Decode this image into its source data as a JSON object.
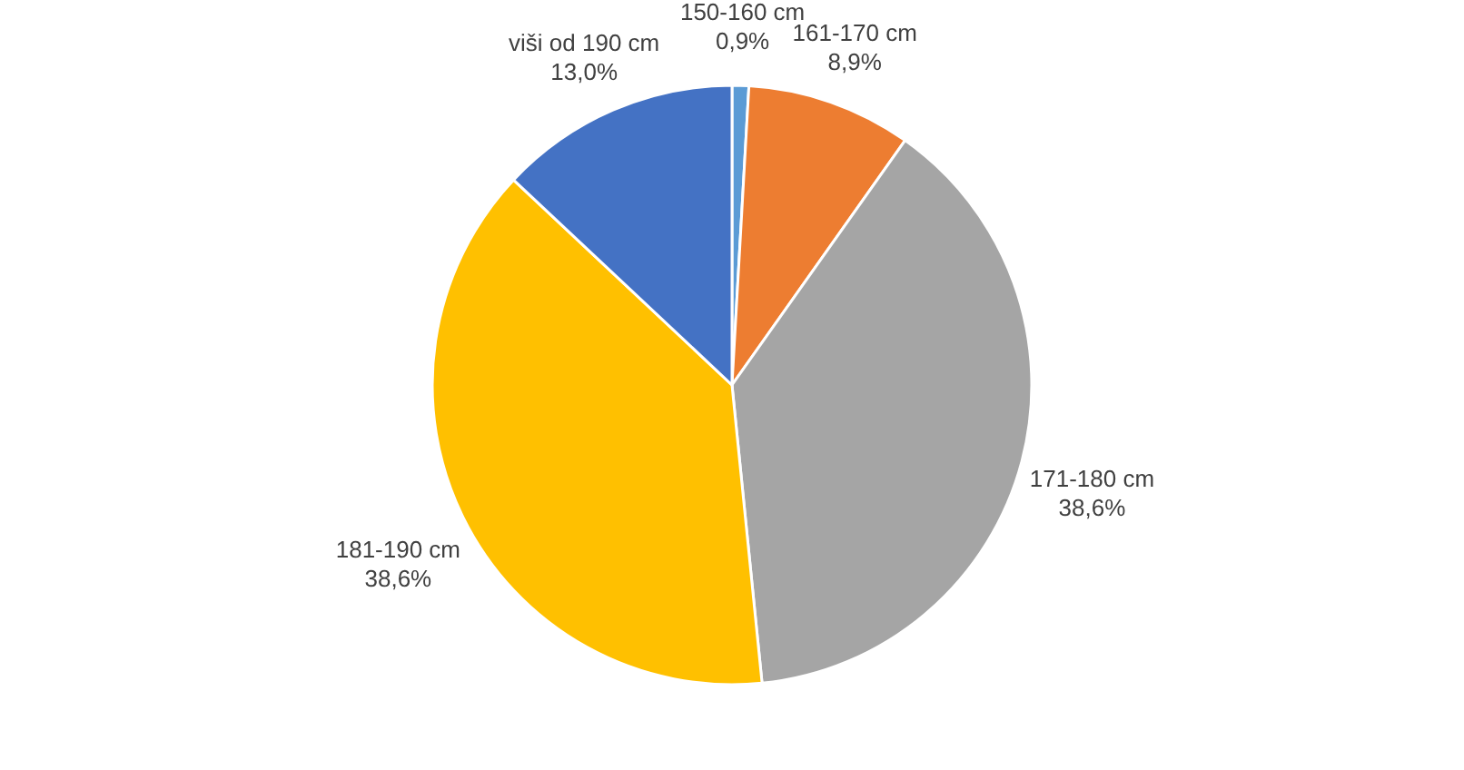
{
  "chart_data": {
    "type": "pie",
    "categories": [
      "150-160 cm",
      "161-170 cm",
      "171-180 cm",
      "181-190 cm",
      "viši od 190 cm"
    ],
    "values": [
      0.9,
      8.9,
      38.6,
      38.6,
      13.0
    ],
    "value_labels": [
      "0,9%",
      "8,9%",
      "38,6%",
      "38,6%",
      "13,0%"
    ],
    "colors": [
      "#5b9bd5",
      "#ed7d31",
      "#a5a5a5",
      "#ffc000",
      "#4472c4"
    ],
    "legend": false
  }
}
